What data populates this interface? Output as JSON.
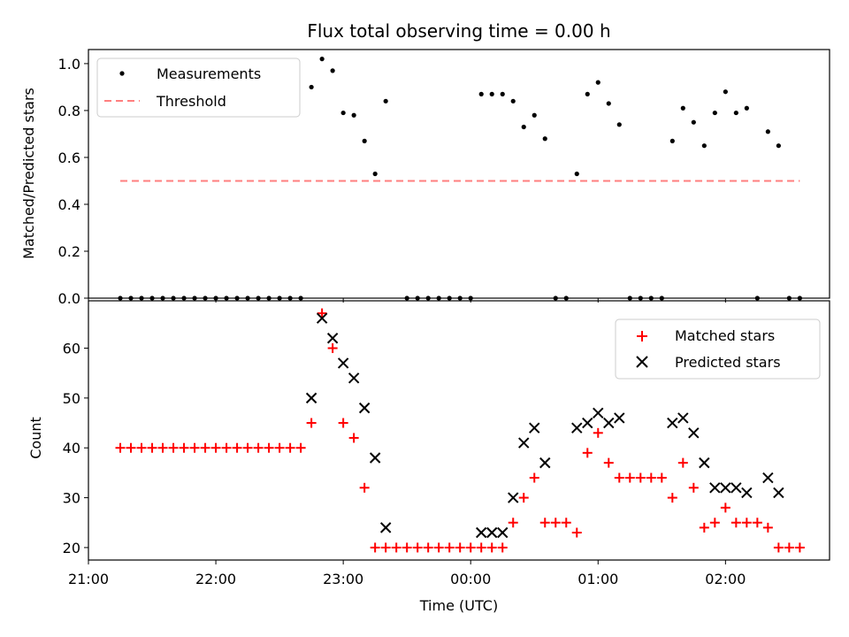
{
  "figure": {
    "title": "Flux total observing time = 0.00 h",
    "xlabel": "Time (UTC)"
  },
  "colors": {
    "measurement": "#000000",
    "threshold": "#ff7f7f",
    "matched": "#ff0000",
    "predicted": "#000000"
  },
  "chart_data": [
    {
      "type": "scatter",
      "panel": "top",
      "ylabel": "Matched/Predicted stars",
      "xlim": [
        "21:00",
        "02:49"
      ],
      "ylim": [
        0,
        1.06
      ],
      "x_ticks": [
        "21:00",
        "22:00",
        "23:00",
        "00:00",
        "01:00",
        "02:00"
      ],
      "y_ticks": [
        "0.0",
        "0.2",
        "0.4",
        "0.6",
        "0.8",
        "1.0"
      ],
      "legend": {
        "placement": "top-left",
        "entries": [
          "Measurements",
          "Threshold"
        ]
      },
      "series": [
        {
          "name": "Measurements",
          "marker": "dot",
          "points": [
            [
              "21:15",
              0
            ],
            [
              "21:20",
              0
            ],
            [
              "21:25",
              0
            ],
            [
              "21:30",
              0
            ],
            [
              "21:35",
              0
            ],
            [
              "21:40",
              0
            ],
            [
              "21:45",
              0
            ],
            [
              "21:50",
              0
            ],
            [
              "21:55",
              0
            ],
            [
              "22:00",
              0
            ],
            [
              "22:05",
              0
            ],
            [
              "22:10",
              0
            ],
            [
              "22:15",
              0
            ],
            [
              "22:20",
              0
            ],
            [
              "22:25",
              0
            ],
            [
              "22:30",
              0
            ],
            [
              "22:35",
              0
            ],
            [
              "22:40",
              0
            ],
            [
              "22:45",
              0.9
            ],
            [
              "22:50",
              1.02
            ],
            [
              "22:55",
              0.97
            ],
            [
              "23:00",
              0.79
            ],
            [
              "23:05",
              0.78
            ],
            [
              "23:10",
              0.67
            ],
            [
              "23:15",
              0.53
            ],
            [
              "23:20",
              0.84
            ],
            [
              "23:30",
              0
            ],
            [
              "23:35",
              0
            ],
            [
              "23:40",
              0
            ],
            [
              "23:45",
              0
            ],
            [
              "23:50",
              0
            ],
            [
              "23:55",
              0
            ],
            [
              "00:00",
              0
            ],
            [
              "00:05",
              0.87
            ],
            [
              "00:10",
              0.87
            ],
            [
              "00:15",
              0.87
            ],
            [
              "00:20",
              0.84
            ],
            [
              "00:25",
              0.73
            ],
            [
              "00:30",
              0.78
            ],
            [
              "00:35",
              0.68
            ],
            [
              "00:40",
              0
            ],
            [
              "00:45",
              0
            ],
            [
              "00:50",
              0.53
            ],
            [
              "00:55",
              0.87
            ],
            [
              "01:00",
              0.92
            ],
            [
              "01:05",
              0.83
            ],
            [
              "01:10",
              0.74
            ],
            [
              "01:15",
              0
            ],
            [
              "01:20",
              0
            ],
            [
              "01:25",
              0
            ],
            [
              "01:30",
              0
            ],
            [
              "01:35",
              0.67
            ],
            [
              "01:40",
              0.81
            ],
            [
              "01:45",
              0.75
            ],
            [
              "01:50",
              0.65
            ],
            [
              "01:55",
              0.79
            ],
            [
              "02:00",
              0.88
            ],
            [
              "02:05",
              0.79
            ],
            [
              "02:10",
              0.81
            ],
            [
              "02:15",
              0
            ],
            [
              "02:20",
              0.71
            ],
            [
              "02:25",
              0.65
            ],
            [
              "02:30",
              0
            ],
            [
              "02:35",
              0
            ]
          ]
        },
        {
          "name": "Threshold",
          "marker": "dashed-line",
          "points": [
            [
              "21:15",
              0.5
            ],
            [
              "02:35",
              0.5
            ]
          ]
        }
      ]
    },
    {
      "type": "scatter",
      "panel": "bottom",
      "ylabel": "Count",
      "xlim": [
        "21:00",
        "02:49"
      ],
      "ylim": [
        17.5,
        69.5
      ],
      "x_ticks": [
        "21:00",
        "22:00",
        "23:00",
        "00:00",
        "01:00",
        "02:00"
      ],
      "y_ticks": [
        "20",
        "30",
        "40",
        "50",
        "60"
      ],
      "legend": {
        "placement": "top-right",
        "entries": [
          "Matched stars",
          "Predicted stars"
        ]
      },
      "series": [
        {
          "name": "Matched stars",
          "marker": "plus",
          "points": [
            [
              "21:15",
              40
            ],
            [
              "21:20",
              40
            ],
            [
              "21:25",
              40
            ],
            [
              "21:30",
              40
            ],
            [
              "21:35",
              40
            ],
            [
              "21:40",
              40
            ],
            [
              "21:45",
              40
            ],
            [
              "21:50",
              40
            ],
            [
              "21:55",
              40
            ],
            [
              "22:00",
              40
            ],
            [
              "22:05",
              40
            ],
            [
              "22:10",
              40
            ],
            [
              "22:15",
              40
            ],
            [
              "22:20",
              40
            ],
            [
              "22:25",
              40
            ],
            [
              "22:30",
              40
            ],
            [
              "22:35",
              40
            ],
            [
              "22:40",
              40
            ],
            [
              "22:45",
              45
            ],
            [
              "22:50",
              67
            ],
            [
              "22:55",
              60
            ],
            [
              "23:00",
              45
            ],
            [
              "23:05",
              42
            ],
            [
              "23:10",
              32
            ],
            [
              "23:15",
              20
            ],
            [
              "23:20",
              20
            ],
            [
              "23:25",
              20
            ],
            [
              "23:30",
              20
            ],
            [
              "23:35",
              20
            ],
            [
              "23:40",
              20
            ],
            [
              "23:45",
              20
            ],
            [
              "23:50",
              20
            ],
            [
              "23:55",
              20
            ],
            [
              "00:00",
              20
            ],
            [
              "00:05",
              20
            ],
            [
              "00:10",
              20
            ],
            [
              "00:15",
              20
            ],
            [
              "00:20",
              25
            ],
            [
              "00:25",
              30
            ],
            [
              "00:30",
              34
            ],
            [
              "00:35",
              25
            ],
            [
              "00:40",
              25
            ],
            [
              "00:45",
              25
            ],
            [
              "00:50",
              23
            ],
            [
              "00:55",
              39
            ],
            [
              "01:00",
              43
            ],
            [
              "01:05",
              37
            ],
            [
              "01:10",
              34
            ],
            [
              "01:15",
              34
            ],
            [
              "01:20",
              34
            ],
            [
              "01:25",
              34
            ],
            [
              "01:30",
              34
            ],
            [
              "01:35",
              30
            ],
            [
              "01:40",
              37
            ],
            [
              "01:45",
              32
            ],
            [
              "01:50",
              24
            ],
            [
              "01:55",
              25
            ],
            [
              "02:00",
              28
            ],
            [
              "02:05",
              25
            ],
            [
              "02:10",
              25
            ],
            [
              "02:15",
              25
            ],
            [
              "02:20",
              24
            ],
            [
              "02:25",
              20
            ],
            [
              "02:30",
              20
            ],
            [
              "02:35",
              20
            ]
          ]
        },
        {
          "name": "Predicted stars",
          "marker": "x",
          "points": [
            [
              "22:45",
              50
            ],
            [
              "22:50",
              66
            ],
            [
              "22:55",
              62
            ],
            [
              "23:00",
              57
            ],
            [
              "23:05",
              54
            ],
            [
              "23:10",
              48
            ],
            [
              "23:15",
              38
            ],
            [
              "23:20",
              24
            ],
            [
              "00:05",
              23
            ],
            [
              "00:10",
              23
            ],
            [
              "00:15",
              23
            ],
            [
              "00:20",
              30
            ],
            [
              "00:25",
              41
            ],
            [
              "00:30",
              44
            ],
            [
              "00:35",
              37
            ],
            [
              "00:50",
              44
            ],
            [
              "00:55",
              45
            ],
            [
              "01:00",
              47
            ],
            [
              "01:05",
              45
            ],
            [
              "01:10",
              46
            ],
            [
              "01:35",
              45
            ],
            [
              "01:40",
              46
            ],
            [
              "01:45",
              43
            ],
            [
              "01:50",
              37
            ],
            [
              "01:55",
              32
            ],
            [
              "02:00",
              32
            ],
            [
              "02:05",
              32
            ],
            [
              "02:10",
              31
            ],
            [
              "02:20",
              34
            ],
            [
              "02:25",
              31
            ]
          ]
        }
      ]
    }
  ]
}
